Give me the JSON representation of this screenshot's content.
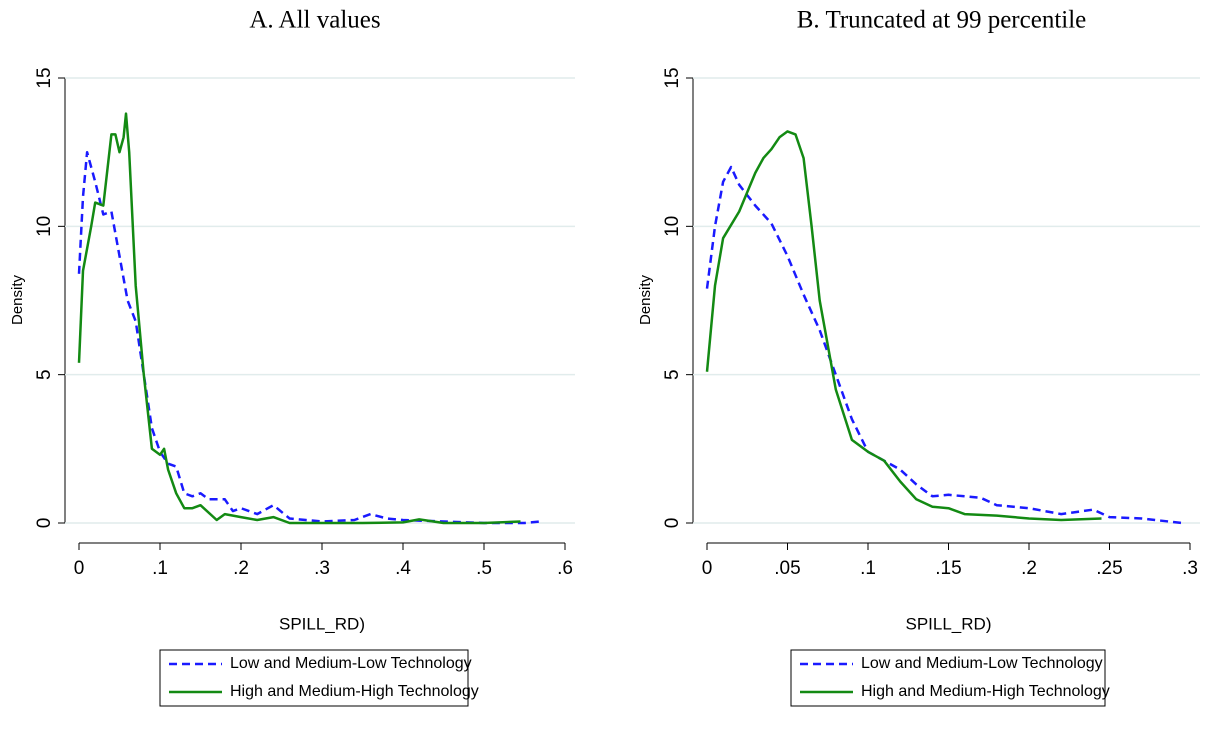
{
  "chart_data": [
    {
      "type": "line",
      "title": "A. All values",
      "xlabel": "SPILL_RD)",
      "ylabel": "Density",
      "xlim": [
        0,
        0.6
      ],
      "ylim": [
        0,
        15
      ],
      "xticks": [
        0,
        {
          "value": 0.1,
          "label": ".1"
        },
        {
          "value": 0.2,
          "label": ".2"
        },
        {
          "value": 0.3,
          "label": ".3"
        },
        {
          "value": 0.4,
          "label": ".4"
        },
        {
          "value": 0.5,
          "label": ".5"
        },
        {
          "value": 0.6,
          "label": ".6"
        }
      ],
      "yticks": [
        0,
        5,
        10,
        15
      ],
      "grid": true,
      "legend": "bottom",
      "series": [
        {
          "name": "Low and Medium-Low Technology",
          "color": "#1a1aff",
          "line_style": "dashed",
          "x": [
            0,
            0.005,
            0.01,
            0.02,
            0.03,
            0.04,
            0.05,
            0.06,
            0.07,
            0.08,
            0.09,
            0.1,
            0.11,
            0.12,
            0.13,
            0.14,
            0.15,
            0.16,
            0.18,
            0.19,
            0.2,
            0.22,
            0.24,
            0.26,
            0.28,
            0.3,
            0.34,
            0.36,
            0.38,
            0.4,
            0.45,
            0.5,
            0.55,
            0.57
          ],
          "values": [
            8.4,
            11,
            12.5,
            11.5,
            10.4,
            10.5,
            9,
            7.5,
            6.8,
            5,
            3.2,
            2.4,
            2.0,
            1.9,
            1.0,
            0.9,
            1.0,
            0.8,
            0.8,
            0.4,
            0.5,
            0.3,
            0.6,
            0.15,
            0.1,
            0.05,
            0.1,
            0.3,
            0.15,
            0.1,
            0.05,
            0,
            0,
            0.05
          ]
        },
        {
          "name": "High and Medium-High Technology",
          "color": "#138a13",
          "line_style": "solid",
          "x": [
            0,
            0.005,
            0.015,
            0.02,
            0.03,
            0.04,
            0.045,
            0.05,
            0.055,
            0.058,
            0.062,
            0.07,
            0.08,
            0.09,
            0.1,
            0.105,
            0.11,
            0.12,
            0.13,
            0.14,
            0.15,
            0.17,
            0.18,
            0.2,
            0.22,
            0.24,
            0.26,
            0.3,
            0.35,
            0.4,
            0.42,
            0.45,
            0.5,
            0.545
          ],
          "values": [
            5.4,
            8.5,
            10,
            10.8,
            10.7,
            13.1,
            13.1,
            12.5,
            13,
            13.8,
            12.5,
            8,
            5,
            2.5,
            2.3,
            2.5,
            1.8,
            1.0,
            0.5,
            0.5,
            0.6,
            0.1,
            0.3,
            0.2,
            0.1,
            0.2,
            0,
            0,
            0,
            0.02,
            0.12,
            0,
            0,
            0.05
          ]
        }
      ]
    },
    {
      "type": "line",
      "title": "B. Truncated at 99 percentile",
      "xlabel": "SPILL_RD)",
      "ylabel": "Density",
      "xlim": [
        0,
        0.3
      ],
      "ylim": [
        0,
        15
      ],
      "xticks": [
        0,
        {
          "value": 0.05,
          "label": ".05"
        },
        {
          "value": 0.1,
          "label": ".1"
        },
        {
          "value": 0.15,
          "label": ".15"
        },
        {
          "value": 0.2,
          "label": ".2"
        },
        {
          "value": 0.25,
          "label": ".25"
        },
        {
          "value": 0.3,
          "label": ".3"
        }
      ],
      "yticks": [
        0,
        5,
        10,
        15
      ],
      "grid": true,
      "legend": "bottom",
      "series": [
        {
          "name": "Low and Medium-Low Technology",
          "color": "#1a1aff",
          "line_style": "dashed",
          "x": [
            0,
            0.005,
            0.01,
            0.015,
            0.02,
            0.03,
            0.04,
            0.05,
            0.06,
            0.07,
            0.08,
            0.09,
            0.1,
            0.11,
            0.12,
            0.13,
            0.14,
            0.15,
            0.17,
            0.18,
            0.2,
            0.22,
            0.24,
            0.25,
            0.27,
            0.295
          ],
          "values": [
            7.9,
            10,
            11.5,
            12,
            11.4,
            10.7,
            10.1,
            9,
            7.7,
            6.5,
            5,
            3.5,
            2.4,
            2.1,
            1.8,
            1.3,
            0.9,
            0.95,
            0.85,
            0.6,
            0.5,
            0.3,
            0.45,
            0.2,
            0.15,
            0
          ]
        },
        {
          "name": "High and Medium-High Technology",
          "color": "#138a13",
          "line_style": "solid",
          "x": [
            0,
            0.005,
            0.01,
            0.02,
            0.03,
            0.035,
            0.04,
            0.045,
            0.05,
            0.055,
            0.06,
            0.065,
            0.07,
            0.08,
            0.09,
            0.1,
            0.11,
            0.12,
            0.13,
            0.14,
            0.15,
            0.16,
            0.18,
            0.2,
            0.22,
            0.245
          ],
          "values": [
            5.1,
            8,
            9.6,
            10.5,
            11.8,
            12.3,
            12.6,
            13,
            13.2,
            13.1,
            12.3,
            10,
            7.5,
            4.5,
            2.8,
            2.4,
            2.1,
            1.4,
            0.8,
            0.55,
            0.5,
            0.3,
            0.25,
            0.15,
            0.1,
            0.15
          ]
        }
      ]
    }
  ]
}
